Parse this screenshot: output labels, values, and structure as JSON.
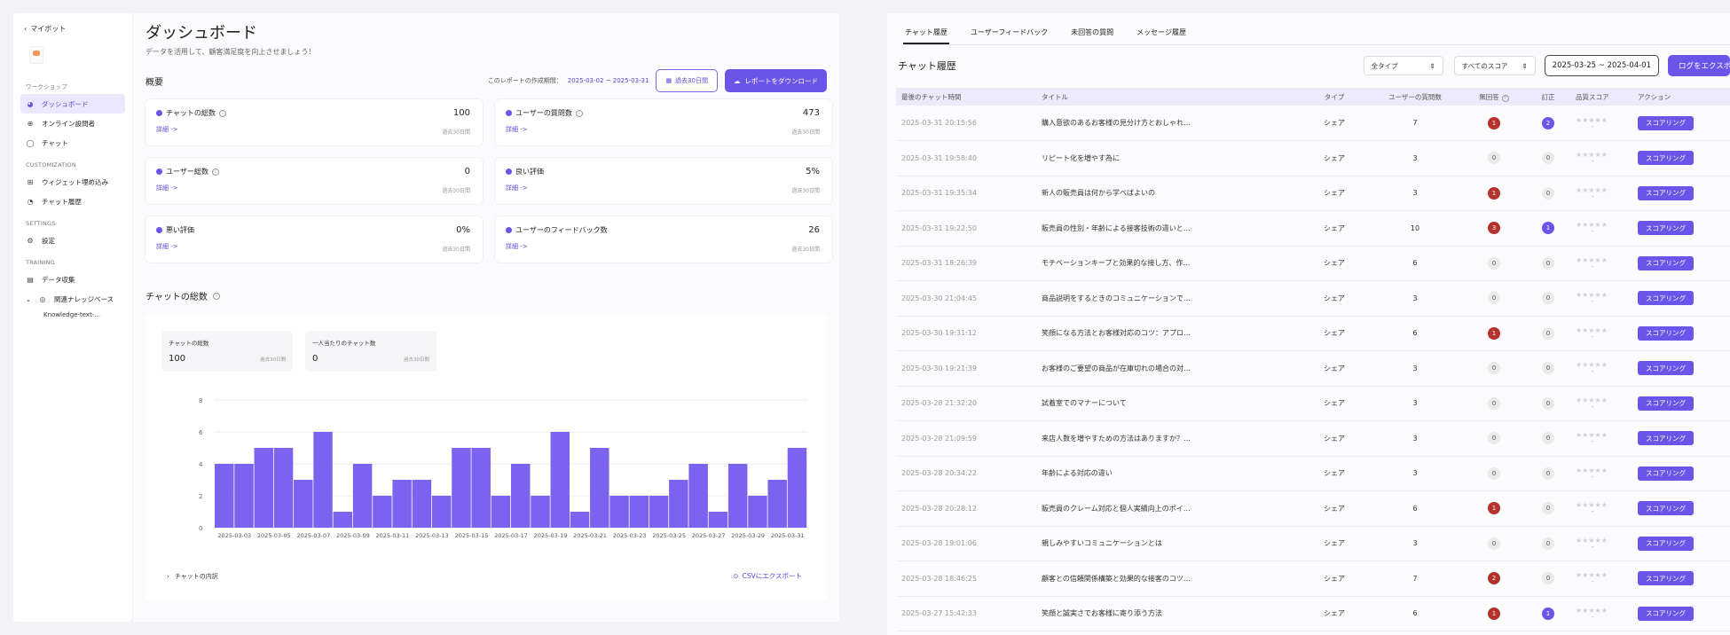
{
  "sidebar": {
    "back_label": "マイボット",
    "sections": [
      {
        "label": "ワークショップ",
        "items": [
          {
            "label": "ダッシュボード",
            "icon": "pie-chart-icon",
            "active": true
          },
          {
            "label": "オンライン設問者",
            "icon": "globe-icon"
          },
          {
            "label": "チャット",
            "icon": "chat-bubble-icon"
          }
        ]
      },
      {
        "label": "CUSTOMIZATION",
        "items": [
          {
            "label": "ウィジェット埋め込み",
            "icon": "grid-icon"
          },
          {
            "label": "チャット履歴",
            "icon": "history-chat-icon"
          }
        ]
      },
      {
        "label": "SETTINGS",
        "items": [
          {
            "label": "設定",
            "icon": "gear-icon"
          }
        ]
      },
      {
        "label": "TRAINING",
        "items": [
          {
            "label": "データ収集",
            "icon": "database-icon"
          },
          {
            "label": "関連ナレッジベース",
            "icon": "knowledge-base-icon",
            "expanded": true
          }
        ]
      }
    ],
    "sub_item": "Knowledge-text-..."
  },
  "dashboard": {
    "title": "ダッシュボード",
    "subtitle": "データを活用して、顧客満足度を向上させましょう！",
    "overview_title": "概要",
    "report_date_label": "このレポートの作成期間：",
    "report_date_value": "2025-03-02 ~ 2025-03-31",
    "period_button": "過去30日間",
    "download_button": "レポートをダウンロード",
    "cards": [
      {
        "label": "チャットの総数",
        "value": "100",
        "period": "過去30日間",
        "detail": "詳細 ->",
        "info": true
      },
      {
        "label": "ユーザーの質問数",
        "value": "473",
        "period": "過去30日間",
        "detail": "詳細 ->",
        "info": true
      },
      {
        "label": "ユーザー総数",
        "value": "0",
        "period": "過去30日間",
        "detail": "詳細 ->",
        "info": true
      },
      {
        "label": "良い評価",
        "value": "5%",
        "period": "過去30日間",
        "detail": "詳細 ->",
        "info": false
      },
      {
        "label": "悪い評価",
        "value": "0%",
        "period": "過去30日間",
        "detail": "詳細 ->",
        "info": false
      },
      {
        "label": "ユーザーのフィードバック数",
        "value": "26",
        "period": "過去30日間",
        "detail": "詳細 ->",
        "info": false
      }
    ],
    "chart_section_title": "チャットの総数",
    "stat_boxes": [
      {
        "label": "チャットの総数",
        "value": "100",
        "period": "過去30日間"
      },
      {
        "label": "一人当たりのチャット数",
        "value": "0",
        "period": "過去30日間"
      }
    ],
    "chart_footer": "チャットの内訳",
    "csv_export": "CSVにエクスポート"
  },
  "chart_data": {
    "type": "bar",
    "ylim": [
      0,
      8
    ],
    "yticks": [
      0,
      2,
      4,
      6,
      8
    ],
    "tick_labels": [
      "2025-03-03",
      "2025-03-05",
      "2025-03-07",
      "2025-03-09",
      "2025-03-11",
      "2025-03-13",
      "2025-03-15",
      "2025-03-17",
      "2025-03-19",
      "2025-03-21",
      "2025-03-23",
      "2025-03-25",
      "2025-03-27",
      "2025-03-29",
      "2025-03-31"
    ],
    "values": [
      4,
      4,
      5,
      5,
      3,
      6,
      1,
      4,
      2,
      3,
      3,
      2,
      5,
      5,
      2,
      4,
      2,
      6,
      1,
      5,
      2,
      2,
      2,
      3,
      4,
      1,
      4,
      2,
      3,
      5
    ],
    "color": "#7b63f0",
    "grid": true
  },
  "history": {
    "tabs": [
      "チャット履歴",
      "ユーザーフィードバック",
      "未回答の質問",
      "メッセージ履歴"
    ],
    "active_tab": 0,
    "title": "チャット履歴",
    "type_select": "全タイプ",
    "score_select": "すべてのスコア",
    "date_range": "2025-03-25 ~ 2025-04-01",
    "log_button": "ログをエクスポート",
    "columns": [
      "最後のチャット時間",
      "タイトル",
      "タイプ",
      "ユーザーの質問数",
      "無回答",
      "訂正",
      "品質スコア",
      "アクション"
    ],
    "action_label": "スコアリング",
    "stars": "★★★★★",
    "star_dash": "-",
    "rows": [
      {
        "time": "2025-03-31 20:15:56",
        "title": "購入意欲のあるお客様の見分け方とおしゃれ…",
        "type": "シェア",
        "questions": "7",
        "unanswered": "1",
        "u_style": "red",
        "corrected": "2",
        "c_style": "purple"
      },
      {
        "time": "2025-03-31 19:58:40",
        "title": "リピート化を増やす為に",
        "type": "シェア",
        "questions": "3",
        "unanswered": "0",
        "u_style": "grey",
        "corrected": "0",
        "c_style": "grey"
      },
      {
        "time": "2025-03-31 19:35:34",
        "title": "新人の販売員は何から学べばよいの",
        "type": "シェア",
        "questions": "3",
        "unanswered": "1",
        "u_style": "red",
        "corrected": "0",
        "c_style": "grey"
      },
      {
        "time": "2025-03-31 19:22:50",
        "title": "販売員の性別・年齢による接客技術の違いと…",
        "type": "シェア",
        "questions": "10",
        "unanswered": "3",
        "u_style": "red",
        "corrected": "1",
        "c_style": "purple"
      },
      {
        "time": "2025-03-31 18:26:39",
        "title": "モチベーションキープと効果的な接し方、作…",
        "type": "シェア",
        "questions": "6",
        "unanswered": "0",
        "u_style": "grey",
        "corrected": "0",
        "c_style": "grey"
      },
      {
        "time": "2025-03-30 21:04:45",
        "title": "商品説明をするときのコミュニケーションで…",
        "type": "シェア",
        "questions": "3",
        "unanswered": "0",
        "u_style": "grey",
        "corrected": "0",
        "c_style": "grey"
      },
      {
        "time": "2025-03-30 19:31:12",
        "title": "笑顔になる方法とお客様対応のコツ：アプロ…",
        "type": "シェア",
        "questions": "6",
        "unanswered": "1",
        "u_style": "red",
        "corrected": "0",
        "c_style": "grey"
      },
      {
        "time": "2025-03-30 19:21:39",
        "title": "お客様のご要望の商品が在庫切れの場合の対…",
        "type": "シェア",
        "questions": "3",
        "unanswered": "0",
        "u_style": "grey",
        "corrected": "0",
        "c_style": "grey"
      },
      {
        "time": "2025-03-28 21:32:20",
        "title": "試着室でのマナーについて",
        "type": "シェア",
        "questions": "3",
        "unanswered": "0",
        "u_style": "grey",
        "corrected": "0",
        "c_style": "grey"
      },
      {
        "time": "2025-03-28 21:09:59",
        "title": "来店人数を増やすための方法はありますか？…",
        "type": "シェア",
        "questions": "3",
        "unanswered": "0",
        "u_style": "grey",
        "corrected": "0",
        "c_style": "grey"
      },
      {
        "time": "2025-03-28 20:34:22",
        "title": "年齢による対応の違い",
        "type": "シェア",
        "questions": "3",
        "unanswered": "0",
        "u_style": "grey",
        "corrected": "0",
        "c_style": "grey"
      },
      {
        "time": "2025-03-28 20:28:12",
        "title": "販売員のクレーム対応と個人実績向上のポイ…",
        "type": "シェア",
        "questions": "6",
        "unanswered": "1",
        "u_style": "red",
        "corrected": "0",
        "c_style": "grey"
      },
      {
        "time": "2025-03-28 19:01:06",
        "title": "親しみやすいコミュニケーションとは",
        "type": "シェア",
        "questions": "3",
        "unanswered": "0",
        "u_style": "grey",
        "corrected": "0",
        "c_style": "grey"
      },
      {
        "time": "2025-03-28 18:46:25",
        "title": "顧客との信頼関係構築と効果的な接客のコツ…",
        "type": "シェア",
        "questions": "7",
        "unanswered": "2",
        "u_style": "red",
        "corrected": "0",
        "c_style": "grey"
      },
      {
        "time": "2025-03-27 15:42:33",
        "title": "笑顔と誠実さでお客様に寄り添う方法",
        "type": "シェア",
        "questions": "6",
        "unanswered": "1",
        "u_style": "red",
        "corrected": "1",
        "c_style": "purple"
      }
    ]
  }
}
